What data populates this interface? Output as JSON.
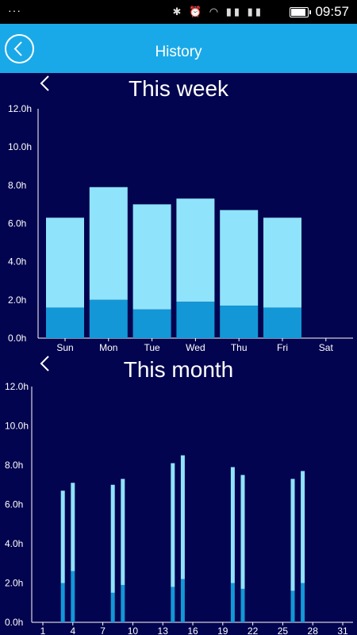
{
  "status_bar": {
    "overflow": "···",
    "time": "09:57",
    "icons": [
      "bluetooth-icon",
      "alarm-icon",
      "wifi-icon",
      "signal-icon",
      "signal-2-icon",
      "battery-icon"
    ],
    "icon_glyphs": "✱ ⏰ ◠ ▮▮ ▮▮"
  },
  "header": {
    "title": "History",
    "color": "#1aa9e8"
  },
  "week": {
    "title": "This week"
  },
  "month": {
    "title": "This month"
  },
  "colors": {
    "background": "#03044f",
    "bar_light": "#8fe3fb",
    "bar_dark": "#1497d6"
  },
  "chart_data": [
    {
      "type": "bar",
      "title": "This week",
      "stacked": true,
      "y_tick_labels": [
        "12.0h",
        "10.0h",
        "8.0h",
        "6.0h",
        "4.0h",
        "2.0h",
        "0.0h"
      ],
      "ylim": [
        0,
        12
      ],
      "categories": [
        "Sun",
        "Mon",
        "Tue",
        "Wed",
        "Thu",
        "Fri",
        "Sat"
      ],
      "series": [
        {
          "values": [
            1.6,
            2.0,
            1.5,
            1.9,
            1.7,
            1.6,
            0
          ]
        },
        {
          "values": [
            4.7,
            5.9,
            5.5,
            5.4,
            5.0,
            4.7,
            0
          ]
        }
      ]
    },
    {
      "type": "bar",
      "title": "This month",
      "stacked": true,
      "y_tick_labels": [
        "12.0h",
        "10.0h",
        "8.0h",
        "6.0h",
        "4.0h",
        "2.0h",
        "0.0h"
      ],
      "ylim": [
        0,
        12
      ],
      "x_tick_labels": [
        "1",
        "4",
        "7",
        "10",
        "13",
        "16",
        "19",
        "22",
        "25",
        "28",
        "31"
      ],
      "x": [
        3,
        4,
        8,
        9,
        14,
        15,
        20,
        21,
        26,
        27
      ],
      "series": [
        {
          "values": [
            2.0,
            2.6,
            1.5,
            1.9,
            1.8,
            2.2,
            2.0,
            1.7,
            1.6,
            2.0
          ]
        },
        {
          "values": [
            4.7,
            4.5,
            5.5,
            5.4,
            6.3,
            6.3,
            5.9,
            5.8,
            5.7,
            5.7
          ]
        }
      ]
    }
  ]
}
